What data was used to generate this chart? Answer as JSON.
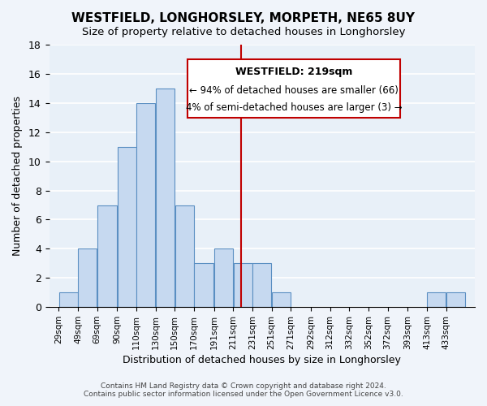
{
  "title": "WESTFIELD, LONGHORSLEY, MORPETH, NE65 8UY",
  "subtitle": "Size of property relative to detached houses in Longhorsley",
  "xlabel": "Distribution of detached houses by size in Longhorsley",
  "ylabel": "Number of detached properties",
  "bar_color": "#c6d9f0",
  "bar_edge_color": "#5a8fc2",
  "background_color": "#e8f0f8",
  "grid_color": "#ffffff",
  "bin_labels": [
    "29sqm",
    "49sqm",
    "69sqm",
    "90sqm",
    "110sqm",
    "130sqm",
    "150sqm",
    "170sqm",
    "191sqm",
    "211sqm",
    "231sqm",
    "251sqm",
    "271sqm",
    "292sqm",
    "312sqm",
    "332sqm",
    "352sqm",
    "372sqm",
    "393sqm",
    "413sqm",
    "433sqm"
  ],
  "bar_heights": [
    1,
    4,
    7,
    11,
    14,
    15,
    7,
    3,
    4,
    3,
    3,
    1,
    0,
    0,
    0,
    0,
    0,
    0,
    0,
    1,
    1
  ],
  "ylim": [
    0,
    18
  ],
  "yticks": [
    0,
    2,
    4,
    6,
    8,
    10,
    12,
    14,
    16,
    18
  ],
  "annotation_title": "WESTFIELD: 219sqm",
  "annotation_line1": "← 94% of detached houses are smaller (66)",
  "annotation_line2": "4% of semi-detached houses are larger (3) →",
  "vline_x": 219,
  "vline_color": "#c00000",
  "annotation_box_color": "#ffffff",
  "annotation_box_edge": "#c00000",
  "footer_line1": "Contains HM Land Registry data © Crown copyright and database right 2024.",
  "footer_line2": "Contains public sector information licensed under the Open Government Licence v3.0.",
  "bin_edges": [
    29,
    49,
    69,
    90,
    110,
    130,
    150,
    170,
    191,
    211,
    231,
    251,
    271,
    292,
    312,
    332,
    352,
    372,
    393,
    413,
    433,
    453
  ]
}
